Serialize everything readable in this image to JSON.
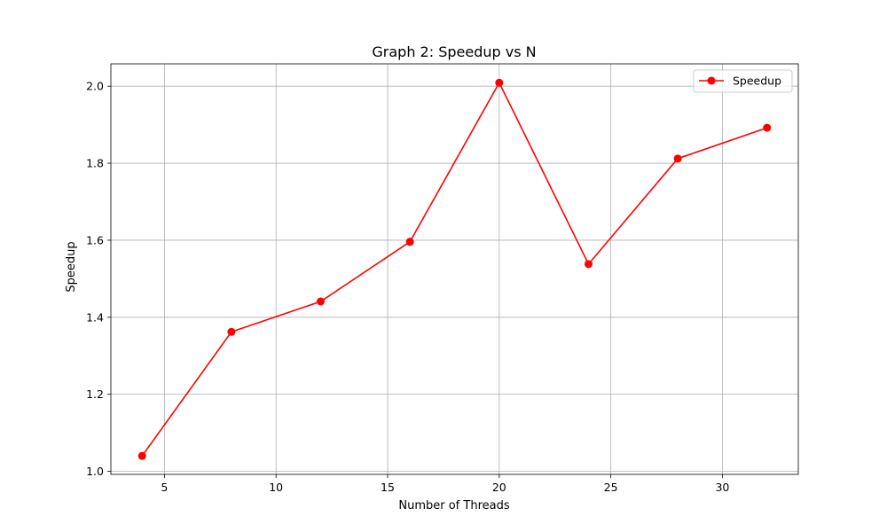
{
  "chart_data": {
    "type": "line",
    "title": "Graph 2: Speedup vs N",
    "xlabel": "Number of Threads",
    "ylabel": "Speedup",
    "xlim": [
      2.6,
      33.4
    ],
    "ylim": [
      0.992,
      2.058
    ],
    "xticks": [
      5,
      10,
      15,
      20,
      25,
      30
    ],
    "yticks": [
      1.0,
      1.2,
      1.4,
      1.6,
      1.8,
      2.0
    ],
    "xtick_labels": [
      "5",
      "10",
      "15",
      "20",
      "25",
      "30"
    ],
    "ytick_labels": [
      "1.0",
      "1.2",
      "1.4",
      "1.6",
      "1.8",
      "2.0"
    ],
    "grid": true,
    "legend_position": "top-right",
    "series": [
      {
        "name": "Speedup",
        "color": "#ff0000",
        "marker": "circle",
        "x": [
          4,
          8,
          12,
          16,
          20,
          24,
          28,
          32
        ],
        "y": [
          1.04,
          1.362,
          1.441,
          1.596,
          2.009,
          1.538,
          1.812,
          1.892
        ]
      }
    ]
  }
}
